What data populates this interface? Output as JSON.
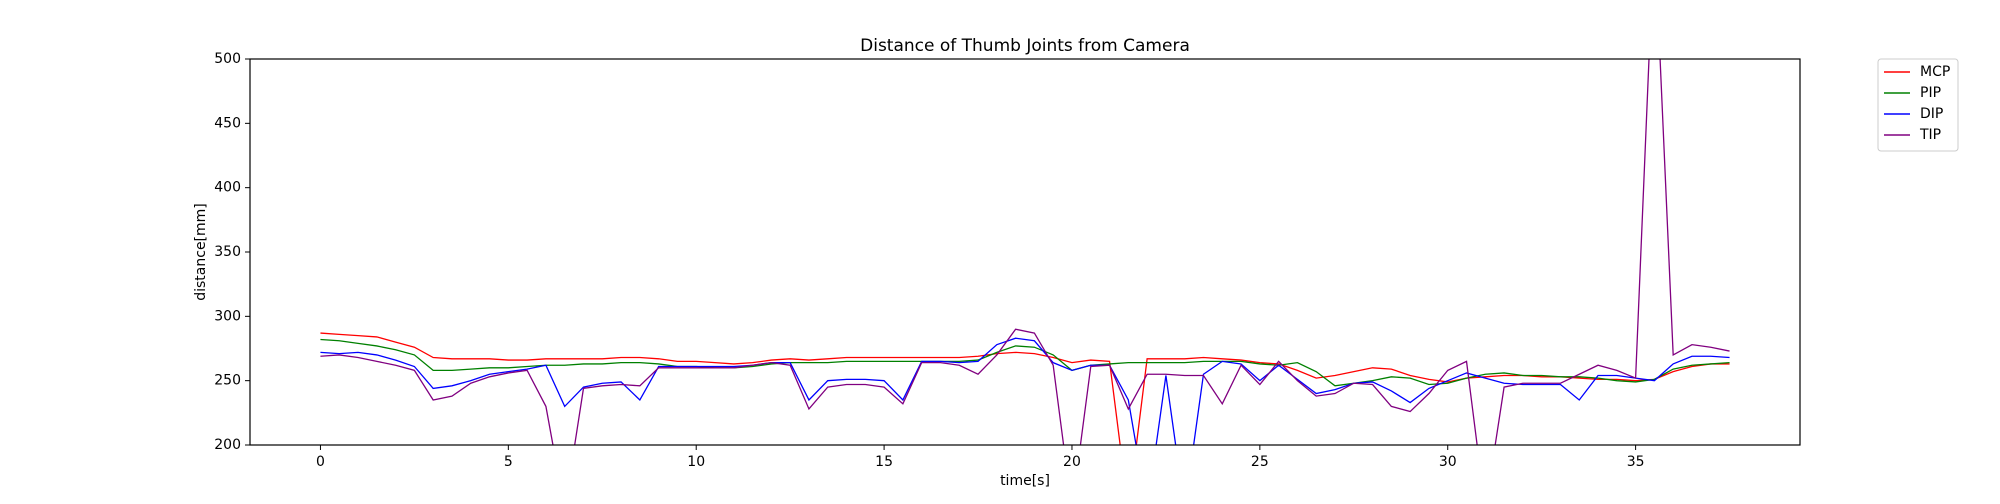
{
  "chart_data": {
    "type": "line",
    "title": "Distance of Thumb Joints from Camera",
    "x_label": "time[s]",
    "y_label": "distance[mm]",
    "x": [
      0,
      0.5,
      1,
      1.5,
      2,
      2.5,
      3,
      3.5,
      4,
      4.5,
      5,
      5.5,
      6,
      6.5,
      7,
      7.5,
      8,
      8.5,
      9,
      9.5,
      10,
      10.5,
      11,
      11.5,
      12,
      12.5,
      13,
      13.5,
      14,
      14.5,
      15,
      15.5,
      16,
      16.5,
      17,
      17.5,
      18,
      18.5,
      19,
      19.5,
      20,
      20.5,
      21,
      21.5,
      22,
      22.5,
      23,
      23.5,
      24,
      24.5,
      25,
      25.5,
      26,
      26.5,
      27,
      27.5,
      28,
      28.5,
      29,
      29.5,
      30,
      30.5,
      31,
      31.5,
      32,
      32.5,
      33,
      33.5,
      34,
      34.5,
      35,
      35.5,
      36,
      36.5,
      37,
      37.5
    ],
    "series": [
      {
        "name": "MCP",
        "color": "#ff0000",
        "values": [
          287,
          286,
          285,
          284,
          280,
          276,
          268,
          267,
          267,
          267,
          266,
          266,
          267,
          267,
          267,
          267,
          268,
          268,
          267,
          265,
          265,
          264,
          263,
          264,
          266,
          267,
          266,
          267,
          268,
          268,
          268,
          268,
          268,
          268,
          268,
          269,
          271,
          272,
          271,
          268,
          264,
          266,
          265,
          150,
          267,
          267,
          267,
          268,
          267,
          266,
          264,
          263,
          258,
          252,
          254,
          257,
          260,
          259,
          254,
          251,
          249,
          252,
          253,
          254,
          254,
          253,
          253,
          252,
          251,
          251,
          250,
          251,
          257,
          261,
          263,
          263
        ]
      },
      {
        "name": "PIP",
        "color": "#008000",
        "values": [
          282,
          281,
          279,
          277,
          274,
          270,
          258,
          258,
          259,
          260,
          260,
          261,
          262,
          262,
          263,
          263,
          264,
          264,
          263,
          261,
          261,
          260,
          260,
          261,
          263,
          264,
          264,
          264,
          265,
          265,
          265,
          265,
          265,
          265,
          265,
          266,
          272,
          277,
          276,
          270,
          258,
          262,
          263,
          264,
          264,
          264,
          264,
          265,
          265,
          265,
          263,
          262,
          264,
          257,
          246,
          248,
          250,
          253,
          252,
          247,
          248,
          252,
          255,
          256,
          254,
          254,
          253,
          253,
          252,
          250,
          249,
          251,
          259,
          262,
          263,
          264
        ]
      },
      {
        "name": "DIP",
        "color": "#0000ff",
        "values": [
          272,
          271,
          272,
          270,
          266,
          261,
          244,
          246,
          250,
          255,
          257,
          259,
          262,
          230,
          245,
          248,
          249,
          235,
          261,
          261,
          261,
          261,
          261,
          262,
          264,
          264,
          235,
          250,
          251,
          251,
          250,
          235,
          265,
          265,
          264,
          265,
          278,
          283,
          281,
          264,
          258,
          262,
          262,
          235,
          150,
          254,
          150,
          255,
          265,
          263,
          250,
          262,
          251,
          240,
          243,
          248,
          249,
          242,
          233,
          244,
          250,
          256,
          252,
          248,
          247,
          247,
          247,
          235,
          254,
          254,
          252,
          250,
          263,
          269,
          269,
          268
        ]
      },
      {
        "name": "TIP",
        "color": "#800080",
        "values": [
          269,
          270,
          268,
          265,
          262,
          258,
          235,
          238,
          248,
          253,
          256,
          258,
          230,
          150,
          244,
          246,
          247,
          246,
          260,
          260,
          260,
          260,
          260,
          262,
          264,
          262,
          228,
          245,
          247,
          247,
          245,
          232,
          264,
          264,
          262,
          255,
          270,
          290,
          287,
          262,
          150,
          261,
          262,
          228,
          255,
          255,
          254,
          254,
          232,
          262,
          247,
          265,
          250,
          238,
          240,
          248,
          247,
          230,
          226,
          240,
          258,
          265,
          150,
          245,
          248,
          248,
          248,
          255,
          262,
          258,
          252,
          600,
          270,
          278,
          276,
          273
        ]
      }
    ],
    "xlim": [
      -1.875,
      39.375
    ],
    "ylim": [
      200,
      500
    ],
    "xticks": [
      0,
      5,
      10,
      15,
      20,
      25,
      30,
      35
    ],
    "yticks": [
      200,
      250,
      300,
      350,
      400,
      450,
      500
    ],
    "legend": "outside upper right"
  }
}
